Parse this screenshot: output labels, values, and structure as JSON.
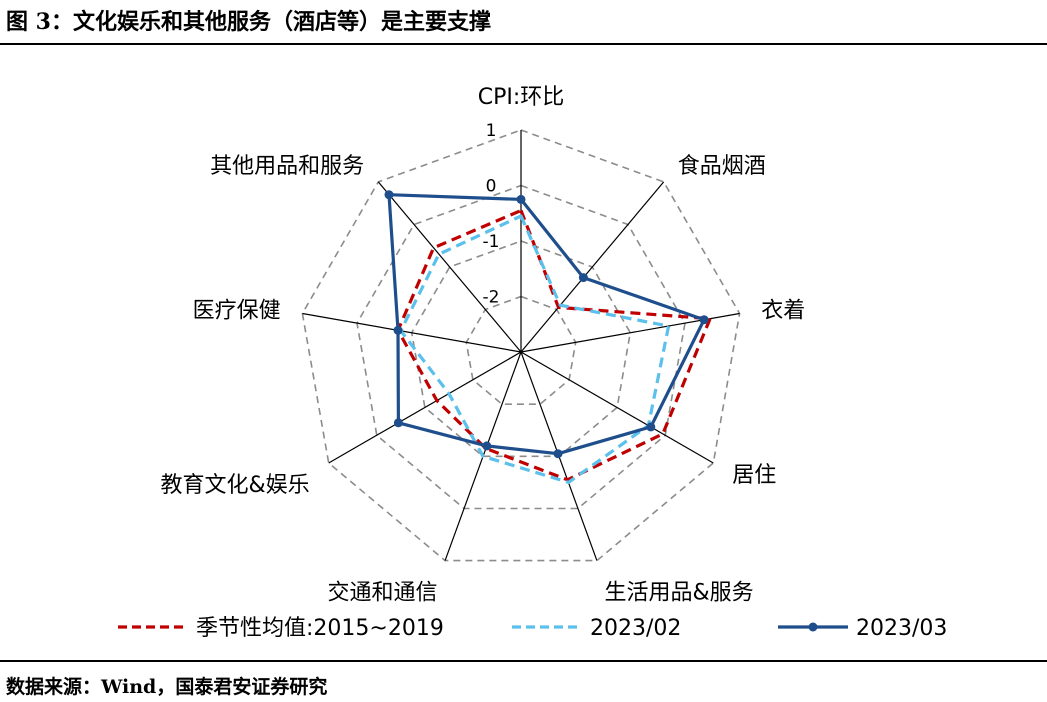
{
  "figure": {
    "title": "图 3：文化娱乐和其他服务（酒店等）是主要支撑",
    "source": "数据来源：Wind，国泰君安证券研究"
  },
  "chart_data": {
    "type": "radar",
    "categories": [
      "CPI:环比",
      "食品烟酒",
      "衣着",
      "居住",
      "生活用品&服务",
      "交通和通信",
      "教育文化&娱乐",
      "医疗保健",
      "其他用品和服务"
    ],
    "rlim": [
      -3,
      1
    ],
    "ticks": [
      1,
      0,
      -1,
      -2
    ],
    "tick_labels": [
      "1",
      "0",
      "-1",
      "-2"
    ],
    "series": [
      {
        "name": "季节性均值:2015~2019",
        "color": "#C00000",
        "style": "dashed",
        "markers": false,
        "values": [
          -0.45,
          -1.95,
          0.46,
          -0.05,
          -0.55,
          -1.15,
          -1.25,
          -0.75,
          -0.55
        ]
      },
      {
        "name": "2023/02",
        "color": "#5BC0EB",
        "style": "dashed",
        "markers": false,
        "values": [
          -0.55,
          -1.9,
          -0.3,
          -0.35,
          -0.5,
          -1.0,
          -1.5,
          -0.8,
          -0.7
        ]
      },
      {
        "name": "2023/03",
        "color": "#1F4E8C",
        "style": "solid",
        "markers": true,
        "values": [
          -0.25,
          -1.25,
          0.35,
          -0.3,
          -1.05,
          -1.2,
          -0.45,
          -0.75,
          0.7
        ]
      }
    ]
  }
}
